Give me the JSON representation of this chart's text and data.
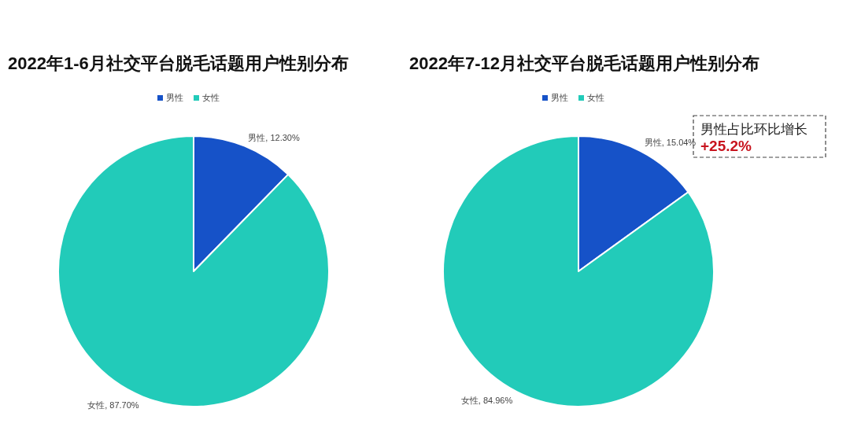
{
  "chart_data": [
    {
      "type": "pie",
      "title": "2022年1-6月社交平台脱毛话题用户性别分布",
      "categories": [
        "男性",
        "女性"
      ],
      "values": [
        12.3,
        87.7
      ],
      "value_labels": [
        "男性, 12.30%",
        "女性, 87.70%"
      ],
      "colors": [
        "#1652c8",
        "#22cbb9"
      ],
      "legend": "top"
    },
    {
      "type": "pie",
      "title": "2022年7-12月社交平台脱毛话题用户性别分布",
      "categories": [
        "男性",
        "女性"
      ],
      "values": [
        15.04,
        84.96
      ],
      "value_labels": [
        "男性, 15.04%",
        "女性, 84.96%"
      ],
      "colors": [
        "#1652c8",
        "#22cbb9"
      ],
      "legend": "top",
      "annotations": [
        "男性占比环比增长",
        "+25.2%"
      ]
    }
  ]
}
